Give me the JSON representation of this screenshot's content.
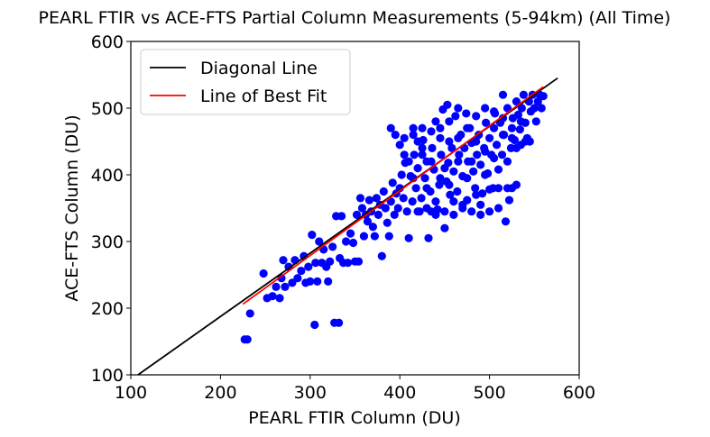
{
  "chart_data": {
    "type": "scatter",
    "title": "PEARL FTIR vs ACE-FTS Partial Column Measurements (5-94km) (All Time)",
    "xlabel": "PEARL FTIR Column (DU)",
    "ylabel": "ACE-FTS Column (DU)",
    "xlim": [
      100,
      600
    ],
    "ylim": [
      100,
      600
    ],
    "xticks": [
      "100",
      "200",
      "300",
      "400",
      "500",
      "600"
    ],
    "yticks": [
      "100",
      "200",
      "300",
      "400",
      "500",
      "600"
    ],
    "grid": false,
    "legend_position": "top-left",
    "colors": {
      "points": "#0000ff",
      "diagonal": "#000000",
      "fit": "#ff0000"
    },
    "series": [
      {
        "style": "points",
        "points": [
          [
            227,
            153
          ],
          [
            230,
            153
          ],
          [
            233,
            192
          ],
          [
            248,
            252
          ],
          [
            252,
            215
          ],
          [
            258,
            218
          ],
          [
            262,
            232
          ],
          [
            266,
            215
          ],
          [
            268,
            245
          ],
          [
            270,
            272
          ],
          [
            272,
            232
          ],
          [
            276,
            262
          ],
          [
            280,
            238
          ],
          [
            283,
            272
          ],
          [
            286,
            245
          ],
          [
            290,
            256
          ],
          [
            293,
            278
          ],
          [
            295,
            238
          ],
          [
            298,
            262
          ],
          [
            300,
            240
          ],
          [
            302,
            310
          ],
          [
            305,
            175
          ],
          [
            306,
            268
          ],
          [
            308,
            240
          ],
          [
            310,
            300
          ],
          [
            313,
            268
          ],
          [
            315,
            288
          ],
          [
            318,
            262
          ],
          [
            320,
            240
          ],
          [
            322,
            270
          ],
          [
            325,
            292
          ],
          [
            327,
            178
          ],
          [
            329,
            338
          ],
          [
            332,
            178
          ],
          [
            333,
            275
          ],
          [
            335,
            338
          ],
          [
            337,
            268
          ],
          [
            340,
            300
          ],
          [
            342,
            268
          ],
          [
            345,
            312
          ],
          [
            348,
            298
          ],
          [
            350,
            270
          ],
          [
            352,
            340
          ],
          [
            354,
            270
          ],
          [
            356,
            365
          ],
          [
            358,
            350
          ],
          [
            360,
            308
          ],
          [
            362,
            340
          ],
          [
            364,
            330
          ],
          [
            366,
            362
          ],
          [
            368,
            345
          ],
          [
            370,
            322
          ],
          [
            372,
            308
          ],
          [
            374,
            365
          ],
          [
            376,
            340
          ],
          [
            378,
            355
          ],
          [
            380,
            278
          ],
          [
            382,
            375
          ],
          [
            384,
            350
          ],
          [
            386,
            328
          ],
          [
            388,
            308
          ],
          [
            390,
            360
          ],
          [
            392,
            388
          ],
          [
            394,
            340
          ],
          [
            396,
            372
          ],
          [
            398,
            350
          ],
          [
            400,
            380
          ],
          [
            402,
            400
          ],
          [
            404,
            365
          ],
          [
            405,
            455
          ],
          [
            406,
            418
          ],
          [
            408,
            345
          ],
          [
            410,
            305
          ],
          [
            412,
            398
          ],
          [
            414,
            360
          ],
          [
            415,
            470
          ],
          [
            416,
            430
          ],
          [
            418,
            380
          ],
          [
            420,
            410
          ],
          [
            422,
            345
          ],
          [
            424,
            365
          ],
          [
            425,
            470
          ],
          [
            426,
            452
          ],
          [
            428,
            395
          ],
          [
            430,
            420
          ],
          [
            432,
            305
          ],
          [
            434,
            375
          ],
          [
            435,
            465
          ],
          [
            436,
            440
          ],
          [
            438,
            408
          ],
          [
            440,
            480
          ],
          [
            442,
            348
          ],
          [
            444,
            385
          ],
          [
            445,
            455
          ],
          [
            446,
            430
          ],
          [
            448,
            498
          ],
          [
            450,
            320
          ],
          [
            452,
            390
          ],
          [
            453,
            505
          ],
          [
            454,
            418
          ],
          [
            455,
            450
          ],
          [
            456,
            370
          ],
          [
            458,
            440
          ],
          [
            460,
            405
          ],
          [
            462,
            488
          ],
          [
            464,
            375
          ],
          [
            465,
            500
          ],
          [
            466,
            430
          ],
          [
            468,
            460
          ],
          [
            470,
            398
          ],
          [
            472,
            440
          ],
          [
            474,
            492
          ],
          [
            475,
            362
          ],
          [
            476,
            420
          ],
          [
            478,
            470
          ],
          [
            480,
            448
          ],
          [
            482,
            405
          ],
          [
            484,
            380
          ],
          [
            485,
            488
          ],
          [
            486,
            430
          ],
          [
            488,
            460
          ],
          [
            490,
            415
          ],
          [
            492,
            372
          ],
          [
            494,
            440
          ],
          [
            495,
            500
          ],
          [
            496,
            478
          ],
          [
            498,
            402
          ],
          [
            500,
            455
          ],
          [
            502,
            430
          ],
          [
            504,
            380
          ],
          [
            505,
            470
          ],
          [
            506,
            492
          ],
          [
            508,
            445
          ],
          [
            510,
            408
          ],
          [
            512,
            478
          ],
          [
            514,
            430
          ],
          [
            515,
            520
          ],
          [
            516,
            460
          ],
          [
            518,
            330
          ],
          [
            520,
            500
          ],
          [
            522,
            362
          ],
          [
            524,
            440
          ],
          [
            525,
            455
          ],
          [
            526,
            485
          ],
          [
            528,
            452
          ],
          [
            530,
            510
          ],
          [
            532,
            490
          ],
          [
            534,
            468
          ],
          [
            535,
            445
          ],
          [
            536,
            500
          ],
          [
            538,
            520
          ],
          [
            540,
            478
          ],
          [
            542,
            455
          ],
          [
            544,
            510
          ],
          [
            546,
            495
          ],
          [
            548,
            520
          ],
          [
            550,
            500
          ],
          [
            552,
            480
          ],
          [
            554,
            510
          ],
          [
            556,
            520
          ],
          [
            558,
            500
          ],
          [
            560,
            518
          ],
          [
            390,
            470
          ],
          [
            395,
            460
          ],
          [
            400,
            445
          ],
          [
            405,
            430
          ],
          [
            410,
            420
          ],
          [
            415,
            395
          ],
          [
            420,
            450
          ],
          [
            425,
            430
          ],
          [
            430,
            380
          ],
          [
            435,
            345
          ],
          [
            440,
            360
          ],
          [
            445,
            395
          ],
          [
            450,
            410
          ],
          [
            455,
            385
          ],
          [
            460,
            360
          ],
          [
            465,
            420
          ],
          [
            470,
            355
          ],
          [
            475,
            395
          ],
          [
            480,
            420
          ],
          [
            485,
            370
          ],
          [
            490,
            355
          ],
          [
            495,
            400
          ],
          [
            500,
            378
          ],
          [
            505,
            425
          ],
          [
            510,
            350
          ],
          [
            515,
            460
          ],
          [
            520,
            420
          ],
          [
            525,
            380
          ],
          [
            530,
            440
          ],
          [
            540,
            450
          ],
          [
            415,
            460
          ],
          [
            425,
            440
          ],
          [
            435,
            420
          ],
          [
            445,
            470
          ],
          [
            455,
            480
          ],
          [
            465,
            455
          ],
          [
            475,
            470
          ],
          [
            485,
            450
          ],
          [
            495,
            435
          ],
          [
            505,
            495
          ],
          [
            515,
            485
          ],
          [
            525,
            470
          ],
          [
            535,
            480
          ],
          [
            545,
            450
          ],
          [
            420,
            345
          ],
          [
            430,
            350
          ],
          [
            440,
            340
          ],
          [
            450,
            345
          ],
          [
            460,
            340
          ],
          [
            470,
            350
          ],
          [
            480,
            345
          ],
          [
            490,
            340
          ],
          [
            500,
            345
          ],
          [
            510,
            380
          ],
          [
            520,
            380
          ],
          [
            530,
            385
          ]
        ]
      },
      {
        "name": "Diagonal Line",
        "style": "line",
        "x": [
          108,
          576
        ],
        "y": [
          100,
          545
        ]
      },
      {
        "name": "Line of Best Fit",
        "style": "line",
        "x": [
          225,
          560
        ],
        "y": [
          206,
          532
        ]
      }
    ]
  }
}
